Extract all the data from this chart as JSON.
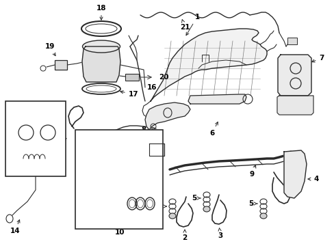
{
  "bg_color": "#ffffff",
  "line_color": "#2a2a2a",
  "fig_width": 4.89,
  "fig_height": 3.6,
  "dpi": 100,
  "label_fontsize": 7.5,
  "lw_main": 1.0,
  "lw_thin": 0.6,
  "lw_thick": 1.5
}
